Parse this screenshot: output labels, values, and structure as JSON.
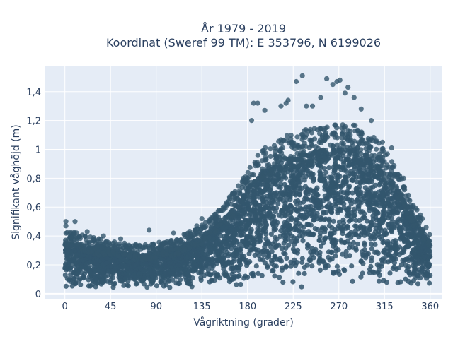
{
  "chart_data": {
    "type": "scatter",
    "title_line1": "År 1979 - 2019",
    "title_line2": "Koordinat (Sweref 99 TM): E 353796, N 6199026",
    "xlabel": "Vågriktning (grader)",
    "ylabel": "Signifikant våghöjd (m)",
    "xlim": [
      -20,
      372
    ],
    "ylim": [
      -0.04,
      1.58
    ],
    "xticks": [
      0,
      45,
      90,
      135,
      180,
      225,
      270,
      315,
      360
    ],
    "xtick_labels": [
      "0",
      "45",
      "90",
      "135",
      "180",
      "225",
      "270",
      "315",
      "360"
    ],
    "yticks": [
      0,
      0.2,
      0.4,
      0.6,
      0.8,
      1.0,
      1.2,
      1.4
    ],
    "ytick_labels": [
      "0",
      "0,2",
      "0,4",
      "0,6",
      "0,8",
      "1",
      "1,2",
      "1,4"
    ],
    "grid": true,
    "colors": {
      "marker": "#33566d",
      "plot_bg": "#e5ecf6",
      "grid": "#ffffff",
      "text": "#2a3f5f"
    },
    "envelope": {
      "direction": [
        0,
        15,
        30,
        45,
        60,
        75,
        90,
        105,
        120,
        135,
        150,
        165,
        180,
        195,
        210,
        225,
        240,
        255,
        270,
        285,
        300,
        315,
        330,
        345,
        360
      ],
      "upper_bound": [
        0.35,
        0.34,
        0.31,
        0.3,
        0.28,
        0.27,
        0.28,
        0.3,
        0.34,
        0.39,
        0.47,
        0.58,
        0.73,
        0.85,
        0.9,
        0.95,
        0.98,
        1.0,
        1.02,
        1.01,
        0.95,
        0.85,
        0.7,
        0.5,
        0.36
      ],
      "lower_bound": [
        0.04,
        0.04,
        0.04,
        0.04,
        0.04,
        0.04,
        0.04,
        0.04,
        0.04,
        0.04,
        0.04,
        0.04,
        0.04,
        0.04,
        0.04,
        0.04,
        0.04,
        0.04,
        0.04,
        0.04,
        0.04,
        0.04,
        0.04,
        0.04,
        0.04
      ]
    },
    "outliers": [
      {
        "x": 1,
        "y": 0.5
      },
      {
        "x": 1,
        "y": 0.47
      },
      {
        "x": 10,
        "y": 0.5
      },
      {
        "x": 22,
        "y": 0.43
      },
      {
        "x": 38,
        "y": 0.4
      },
      {
        "x": 55,
        "y": 0.38
      },
      {
        "x": 83,
        "y": 0.44
      },
      {
        "x": 107,
        "y": 0.42
      },
      {
        "x": 130,
        "y": 0.47
      },
      {
        "x": 135,
        "y": 0.52
      },
      {
        "x": 160,
        "y": 0.62
      },
      {
        "x": 184,
        "y": 1.2
      },
      {
        "x": 186,
        "y": 1.32
      },
      {
        "x": 190,
        "y": 1.32
      },
      {
        "x": 197,
        "y": 1.27
      },
      {
        "x": 213,
        "y": 1.3
      },
      {
        "x": 218,
        "y": 1.32
      },
      {
        "x": 220,
        "y": 1.34
      },
      {
        "x": 228,
        "y": 1.47
      },
      {
        "x": 234,
        "y": 1.51
      },
      {
        "x": 238,
        "y": 1.3
      },
      {
        "x": 244,
        "y": 1.3
      },
      {
        "x": 252,
        "y": 1.36
      },
      {
        "x": 258,
        "y": 1.49
      },
      {
        "x": 264,
        "y": 1.45
      },
      {
        "x": 268,
        "y": 1.47
      },
      {
        "x": 271,
        "y": 1.48
      },
      {
        "x": 276,
        "y": 1.39
      },
      {
        "x": 279,
        "y": 1.43
      },
      {
        "x": 285,
        "y": 1.36
      },
      {
        "x": 292,
        "y": 1.28
      },
      {
        "x": 302,
        "y": 1.2
      },
      {
        "x": 313,
        "y": 1.05
      },
      {
        "x": 322,
        "y": 1.01
      },
      {
        "x": 334,
        "y": 0.8
      },
      {
        "x": 347,
        "y": 0.53
      },
      {
        "x": 356,
        "y": 0.46
      }
    ]
  }
}
